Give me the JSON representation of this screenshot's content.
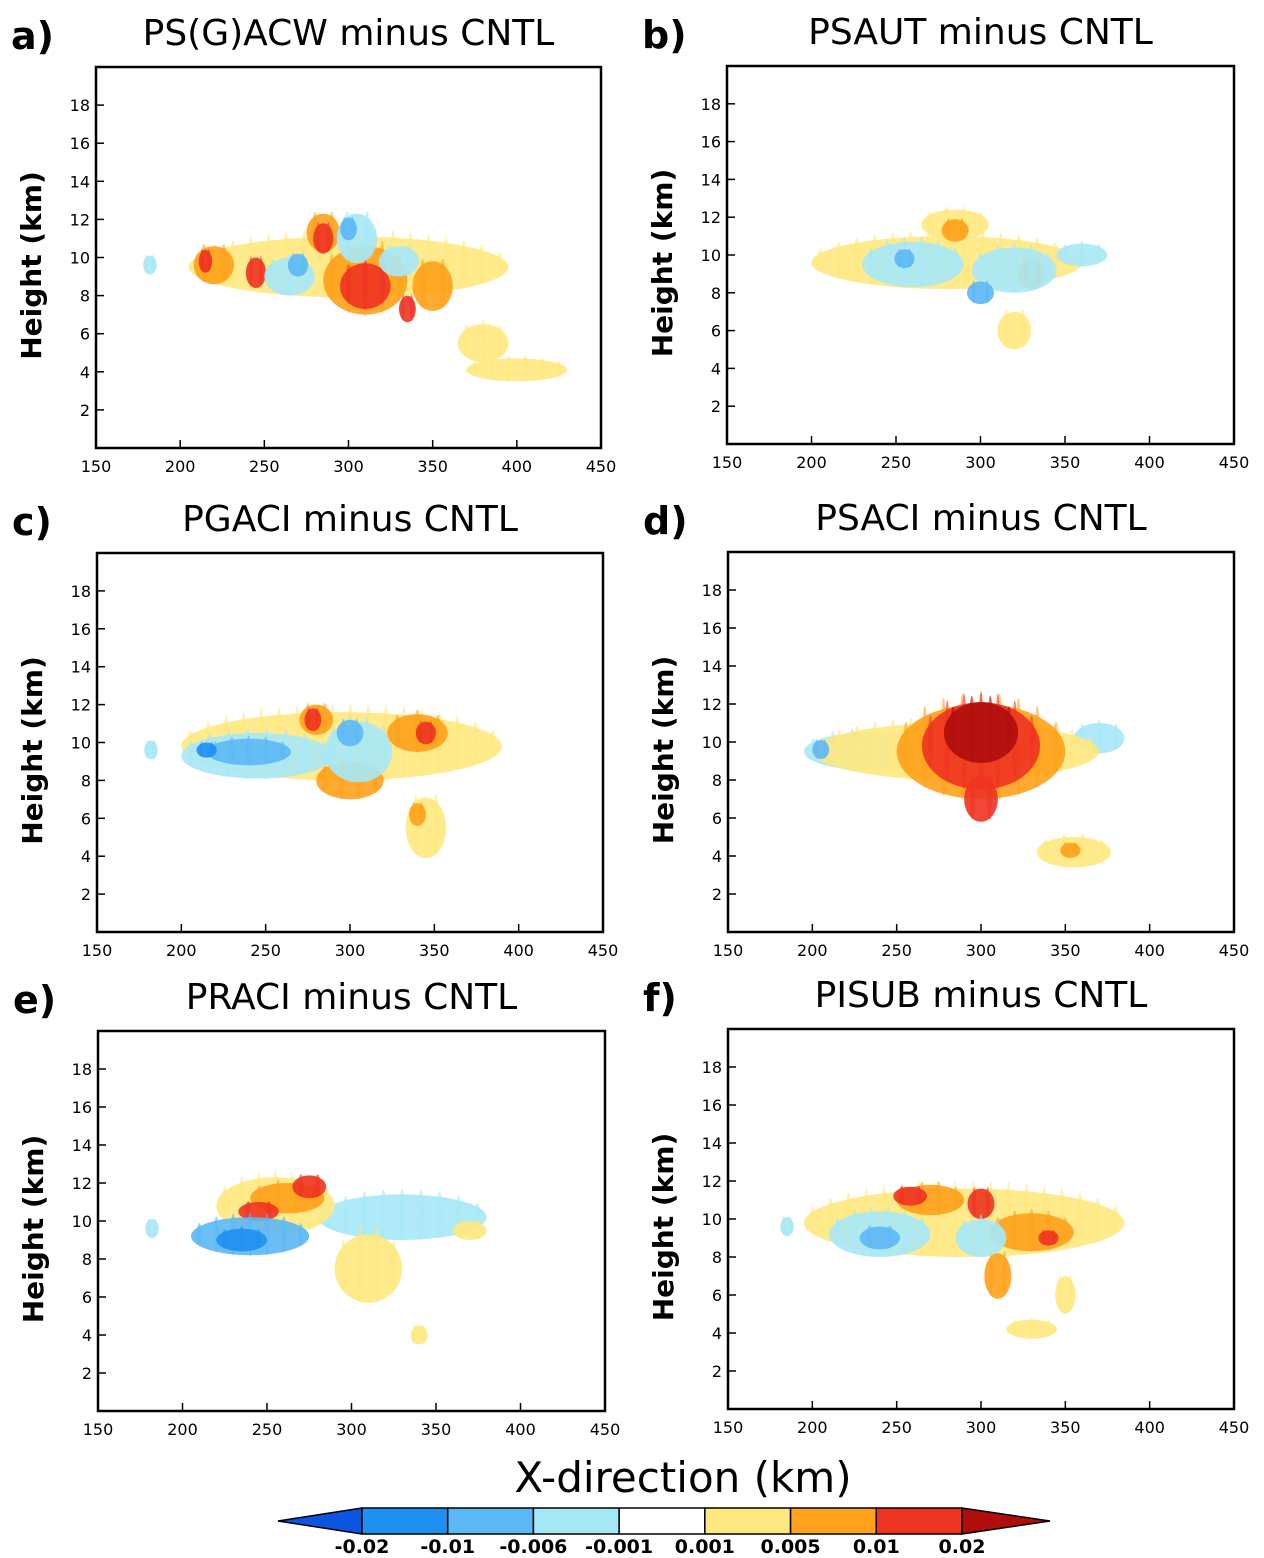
{
  "figure": {
    "xlabel": "X-direction (km)",
    "ylabel": "Height (km)"
  },
  "colorbar": {
    "labels": [
      "-0.02",
      "-0.01",
      "-0.006",
      "-0.001",
      "0.001",
      "0.005",
      "0.01",
      "0.02"
    ],
    "colors": {
      "under": "#0b55e0",
      "c1": "#1f8ff0",
      "c2": "#5cb8f5",
      "c3": "#a7e8f7",
      "c4": "#ffffff",
      "c5": "#ffe880",
      "c6": "#ffa11a",
      "c7": "#ef3322",
      "over": "#b00d0d"
    }
  },
  "chart_data": [
    {
      "type": "heatmap",
      "letter": "a)",
      "title": "PS(G)ACW minus CNTL",
      "xlabel": "",
      "ylabel": "Height (km)",
      "xlim": [
        150,
        450
      ],
      "ylim": [
        0,
        20
      ],
      "xticks": [
        150,
        200,
        250,
        300,
        350,
        400,
        450
      ],
      "yticks": [
        2,
        4,
        6,
        8,
        10,
        12,
        14,
        16,
        18
      ],
      "blobs": [
        {
          "x": 300,
          "y": 9.5,
          "rx": 95,
          "ry": 1.6,
          "level": "c5"
        },
        {
          "x": 400,
          "y": 4.1,
          "rx": 30,
          "ry": 0.6,
          "level": "c5"
        },
        {
          "x": 380,
          "y": 5.5,
          "rx": 15,
          "ry": 1.0,
          "level": "c5"
        },
        {
          "x": 285,
          "y": 11.3,
          "rx": 10,
          "ry": 1.0,
          "level": "c6"
        },
        {
          "x": 220,
          "y": 9.6,
          "rx": 12,
          "ry": 1.0,
          "level": "c6"
        },
        {
          "x": 310,
          "y": 8.8,
          "rx": 25,
          "ry": 1.8,
          "level": "c6"
        },
        {
          "x": 350,
          "y": 8.5,
          "rx": 12,
          "ry": 1.3,
          "level": "c6"
        },
        {
          "x": 285,
          "y": 11.0,
          "rx": 6,
          "ry": 0.8,
          "level": "c7"
        },
        {
          "x": 310,
          "y": 8.5,
          "rx": 15,
          "ry": 1.2,
          "level": "c7"
        },
        {
          "x": 245,
          "y": 9.2,
          "rx": 6,
          "ry": 0.8,
          "level": "c7"
        },
        {
          "x": 335,
          "y": 7.3,
          "rx": 5,
          "ry": 0.7,
          "level": "c7"
        },
        {
          "x": 215,
          "y": 9.8,
          "rx": 4,
          "ry": 0.6,
          "level": "c7"
        },
        {
          "x": 305,
          "y": 11.0,
          "rx": 12,
          "ry": 1.3,
          "level": "c3"
        },
        {
          "x": 265,
          "y": 9.0,
          "rx": 15,
          "ry": 1.0,
          "level": "c3"
        },
        {
          "x": 330,
          "y": 9.8,
          "rx": 12,
          "ry": 0.8,
          "level": "c3"
        },
        {
          "x": 182,
          "y": 9.6,
          "rx": 4,
          "ry": 0.5,
          "level": "c3"
        },
        {
          "x": 300,
          "y": 11.5,
          "rx": 5,
          "ry": 0.6,
          "level": "c2"
        },
        {
          "x": 270,
          "y": 9.6,
          "rx": 6,
          "ry": 0.6,
          "level": "c2"
        }
      ]
    },
    {
      "type": "heatmap",
      "letter": "b)",
      "title": "PSAUT minus CNTL",
      "xlabel": "",
      "ylabel": "Height (km)",
      "xlim": [
        150,
        450
      ],
      "ylim": [
        0,
        20
      ],
      "xticks": [
        150,
        200,
        250,
        300,
        350,
        400,
        450
      ],
      "yticks": [
        2,
        4,
        6,
        8,
        10,
        12,
        14,
        16,
        18
      ],
      "blobs": [
        {
          "x": 280,
          "y": 9.6,
          "rx": 80,
          "ry": 1.4,
          "level": "c5"
        },
        {
          "x": 285,
          "y": 11.6,
          "rx": 20,
          "ry": 0.8,
          "level": "c5"
        },
        {
          "x": 320,
          "y": 6.0,
          "rx": 10,
          "ry": 1.0,
          "level": "c5"
        },
        {
          "x": 285,
          "y": 11.3,
          "rx": 8,
          "ry": 0.6,
          "level": "c6"
        },
        {
          "x": 330,
          "y": 9.0,
          "rx": 8,
          "ry": 0.8,
          "level": "c6"
        },
        {
          "x": 260,
          "y": 9.5,
          "rx": 30,
          "ry": 1.2,
          "level": "c3"
        },
        {
          "x": 320,
          "y": 9.2,
          "rx": 25,
          "ry": 1.2,
          "level": "c3"
        },
        {
          "x": 360,
          "y": 10.0,
          "rx": 15,
          "ry": 0.6,
          "level": "c3"
        },
        {
          "x": 300,
          "y": 8.0,
          "rx": 8,
          "ry": 0.6,
          "level": "c2"
        },
        {
          "x": 255,
          "y": 9.8,
          "rx": 6,
          "ry": 0.5,
          "level": "c2"
        }
      ]
    },
    {
      "type": "heatmap",
      "letter": "c)",
      "title": "PGACI minus CNTL",
      "xlabel": "",
      "ylabel": "Height (km)",
      "xlim": [
        150,
        450
      ],
      "ylim": [
        0,
        20
      ],
      "xticks": [
        150,
        200,
        250,
        300,
        350,
        400,
        450
      ],
      "yticks": [
        2,
        4,
        6,
        8,
        10,
        12,
        14,
        16,
        18
      ],
      "blobs": [
        {
          "x": 295,
          "y": 9.8,
          "rx": 95,
          "ry": 1.8,
          "level": "c5"
        },
        {
          "x": 345,
          "y": 5.5,
          "rx": 12,
          "ry": 1.6,
          "level": "c5"
        },
        {
          "x": 280,
          "y": 11.2,
          "rx": 10,
          "ry": 0.8,
          "level": "c6"
        },
        {
          "x": 340,
          "y": 10.5,
          "rx": 18,
          "ry": 1.0,
          "level": "c6"
        },
        {
          "x": 300,
          "y": 8.0,
          "rx": 20,
          "ry": 1.0,
          "level": "c6"
        },
        {
          "x": 340,
          "y": 6.2,
          "rx": 5,
          "ry": 0.6,
          "level": "c6"
        },
        {
          "x": 278,
          "y": 11.2,
          "rx": 5,
          "ry": 0.6,
          "level": "c7"
        },
        {
          "x": 345,
          "y": 10.5,
          "rx": 6,
          "ry": 0.6,
          "level": "c7"
        },
        {
          "x": 245,
          "y": 9.3,
          "rx": 45,
          "ry": 1.2,
          "level": "c3"
        },
        {
          "x": 305,
          "y": 9.5,
          "rx": 20,
          "ry": 1.6,
          "level": "c3"
        },
        {
          "x": 182,
          "y": 9.6,
          "rx": 4,
          "ry": 0.5,
          "level": "c3"
        },
        {
          "x": 240,
          "y": 9.5,
          "rx": 25,
          "ry": 0.7,
          "level": "c2"
        },
        {
          "x": 300,
          "y": 10.5,
          "rx": 8,
          "ry": 0.7,
          "level": "c2"
        },
        {
          "x": 215,
          "y": 9.6,
          "rx": 6,
          "ry": 0.4,
          "level": "c1"
        }
      ]
    },
    {
      "type": "heatmap",
      "letter": "d)",
      "title": "PSACI minus CNTL",
      "xlabel": "",
      "ylabel": "Height (km)",
      "xlim": [
        150,
        450
      ],
      "ylim": [
        0,
        20
      ],
      "xticks": [
        150,
        200,
        250,
        300,
        350,
        400,
        450
      ],
      "yticks": [
        2,
        4,
        6,
        8,
        10,
        12,
        14,
        16,
        18
      ],
      "blobs": [
        {
          "x": 370,
          "y": 10.2,
          "rx": 15,
          "ry": 0.8,
          "level": "c3"
        },
        {
          "x": 235,
          "y": 9.5,
          "rx": 40,
          "ry": 1.0,
          "level": "c3"
        },
        {
          "x": 285,
          "y": 9.5,
          "rx": 85,
          "ry": 1.5,
          "level": "c5"
        },
        {
          "x": 355,
          "y": 4.2,
          "rx": 22,
          "ry": 0.8,
          "level": "c5"
        },
        {
          "x": 300,
          "y": 9.5,
          "rx": 50,
          "ry": 2.5,
          "level": "c6"
        },
        {
          "x": 300,
          "y": 9.8,
          "rx": 35,
          "ry": 2.3,
          "level": "c7"
        },
        {
          "x": 300,
          "y": 10.5,
          "rx": 22,
          "ry": 1.6,
          "level": "c8"
        },
        {
          "x": 300,
          "y": 7.0,
          "rx": 10,
          "ry": 1.2,
          "level": "c7"
        },
        {
          "x": 353,
          "y": 4.3,
          "rx": 6,
          "ry": 0.4,
          "level": "c6"
        },
        {
          "x": 205,
          "y": 9.6,
          "rx": 5,
          "ry": 0.5,
          "level": "c2"
        }
      ]
    },
    {
      "type": "heatmap",
      "letter": "e)",
      "title": "PRACI minus CNTL",
      "xlabel": "",
      "ylabel": "Height (km)",
      "xlim": [
        150,
        450
      ],
      "ylim": [
        0,
        20
      ],
      "xticks": [
        150,
        200,
        250,
        300,
        350,
        400,
        450
      ],
      "yticks": [
        2,
        4,
        6,
        8,
        10,
        12,
        14,
        16,
        18
      ],
      "blobs": [
        {
          "x": 330,
          "y": 10.2,
          "rx": 50,
          "ry": 1.2,
          "level": "c3"
        },
        {
          "x": 370,
          "y": 9.5,
          "rx": 10,
          "ry": 0.5,
          "level": "c5"
        },
        {
          "x": 255,
          "y": 10.8,
          "rx": 35,
          "ry": 1.5,
          "level": "c5"
        },
        {
          "x": 310,
          "y": 7.5,
          "rx": 20,
          "ry": 1.8,
          "level": "c5"
        },
        {
          "x": 340,
          "y": 4.0,
          "rx": 5,
          "ry": 0.5,
          "level": "c5"
        },
        {
          "x": 262,
          "y": 11.2,
          "rx": 22,
          "ry": 0.8,
          "level": "c6"
        },
        {
          "x": 275,
          "y": 11.8,
          "rx": 10,
          "ry": 0.6,
          "level": "c7"
        },
        {
          "x": 245,
          "y": 10.5,
          "rx": 12,
          "ry": 0.5,
          "level": "c7"
        },
        {
          "x": 240,
          "y": 9.2,
          "rx": 35,
          "ry": 1.0,
          "level": "c2"
        },
        {
          "x": 235,
          "y": 9.0,
          "rx": 15,
          "ry": 0.6,
          "level": "c1"
        },
        {
          "x": 182,
          "y": 9.6,
          "rx": 4,
          "ry": 0.5,
          "level": "c3"
        }
      ]
    },
    {
      "type": "heatmap",
      "letter": "f)",
      "title": "PISUB minus CNTL",
      "xlabel": "",
      "ylabel": "Height (km)",
      "xlim": [
        150,
        450
      ],
      "ylim": [
        0,
        20
      ],
      "xticks": [
        150,
        200,
        250,
        300,
        350,
        400,
        450
      ],
      "yticks": [
        2,
        4,
        6,
        8,
        10,
        12,
        14,
        16,
        18
      ],
      "blobs": [
        {
          "x": 290,
          "y": 9.8,
          "rx": 95,
          "ry": 1.8,
          "level": "c5"
        },
        {
          "x": 330,
          "y": 4.2,
          "rx": 15,
          "ry": 0.5,
          "level": "c5"
        },
        {
          "x": 350,
          "y": 6.0,
          "rx": 6,
          "ry": 1.0,
          "level": "c5"
        },
        {
          "x": 270,
          "y": 11.0,
          "rx": 20,
          "ry": 0.8,
          "level": "c6"
        },
        {
          "x": 330,
          "y": 9.3,
          "rx": 25,
          "ry": 1.0,
          "level": "c6"
        },
        {
          "x": 310,
          "y": 7.0,
          "rx": 8,
          "ry": 1.2,
          "level": "c6"
        },
        {
          "x": 258,
          "y": 11.2,
          "rx": 10,
          "ry": 0.5,
          "level": "c7"
        },
        {
          "x": 300,
          "y": 10.8,
          "rx": 8,
          "ry": 0.8,
          "level": "c7"
        },
        {
          "x": 340,
          "y": 9.0,
          "rx": 6,
          "ry": 0.4,
          "level": "c7"
        },
        {
          "x": 240,
          "y": 9.2,
          "rx": 30,
          "ry": 1.2,
          "level": "c3"
        },
        {
          "x": 300,
          "y": 9.0,
          "rx": 15,
          "ry": 1.0,
          "level": "c3"
        },
        {
          "x": 240,
          "y": 9.0,
          "rx": 12,
          "ry": 0.6,
          "level": "c2"
        },
        {
          "x": 185,
          "y": 9.6,
          "rx": 4,
          "ry": 0.5,
          "level": "c3"
        }
      ]
    }
  ]
}
